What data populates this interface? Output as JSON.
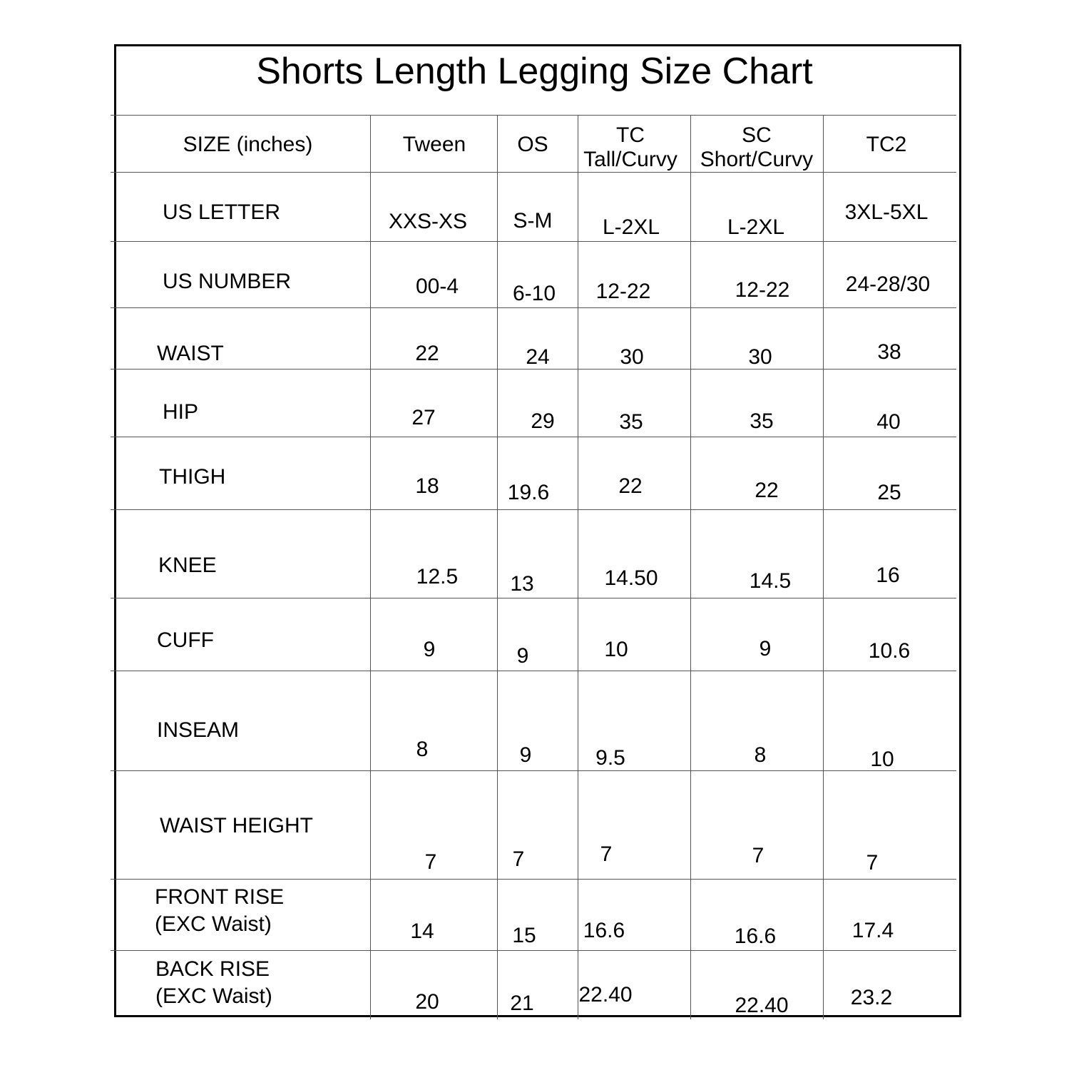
{
  "title": "Shorts Length Legging Size Chart",
  "header": {
    "label": "SIZE (inches)",
    "columns": [
      {
        "name": "Tween",
        "sub": ""
      },
      {
        "name": "OS",
        "sub": ""
      },
      {
        "name": "TC",
        "sub": "Tall/Curvy"
      },
      {
        "name": "SC",
        "sub": "Short/Curvy"
      },
      {
        "name": "TC2",
        "sub": ""
      }
    ]
  },
  "rows": [
    {
      "label": "US LETTER",
      "label2": "",
      "values": [
        "XXS-XS",
        "S-M",
        "L-2XL",
        "L-2XL",
        "3XL-5XL"
      ]
    },
    {
      "label": "US NUMBER",
      "label2": "",
      "values": [
        "00-4",
        "6-10",
        "12-22",
        "12-22",
        "24-28/30"
      ]
    },
    {
      "label": "WAIST",
      "label2": "",
      "values": [
        "22",
        "24",
        "30",
        "30",
        "38"
      ]
    },
    {
      "label": "HIP",
      "label2": "",
      "values": [
        "27",
        "29",
        "35",
        "35",
        "40"
      ]
    },
    {
      "label": "THIGH",
      "label2": "",
      "values": [
        "18",
        "19.6",
        "22",
        "22",
        "25"
      ]
    },
    {
      "label": "KNEE",
      "label2": "",
      "values": [
        "12.5",
        "13",
        "14.50",
        "14.5",
        "16"
      ]
    },
    {
      "label": "CUFF",
      "label2": "",
      "values": [
        "9",
        "9",
        "10",
        "9",
        "10.6"
      ]
    },
    {
      "label": "INSEAM",
      "label2": "",
      "values": [
        "8",
        "9",
        "9.5",
        "8",
        "10"
      ]
    },
    {
      "label": "WAIST HEIGHT",
      "label2": "",
      "values": [
        "7",
        "7",
        "7",
        "7",
        "7"
      ]
    },
    {
      "label": "FRONT RISE",
      "label2": "(EXC Waist)",
      "values": [
        "14",
        "15",
        "16.6",
        "16.6",
        "17.4"
      ]
    },
    {
      "label": "BACK RISE",
      "label2": "(EXC Waist)",
      "values": [
        "20",
        "21",
        "22.40",
        "22.40",
        "23.2"
      ]
    }
  ]
}
